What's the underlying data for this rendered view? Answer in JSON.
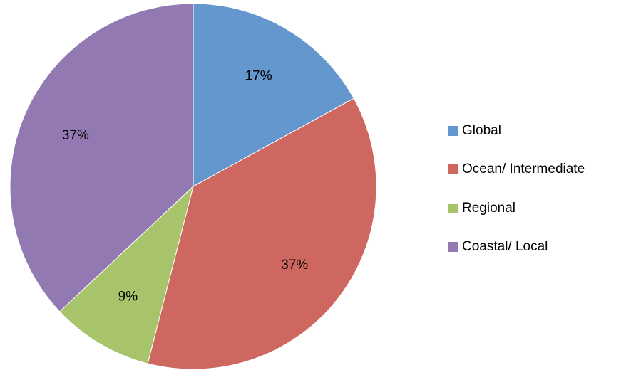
{
  "chart_data": {
    "type": "pie",
    "title": "",
    "legend_position": "right",
    "slices": [
      {
        "name": "Global",
        "value": 17,
        "label": "17%",
        "color": "#6497cd"
      },
      {
        "name": "Ocean/ Intermediate",
        "value": 37,
        "label": "37%",
        "color": "#ce6760"
      },
      {
        "name": "Regional",
        "value": 9,
        "label": "9%",
        "color": "#a7c46a"
      },
      {
        "name": "Coastal/ Local",
        "value": 37,
        "label": "37%",
        "color": "#9379b1"
      }
    ]
  }
}
